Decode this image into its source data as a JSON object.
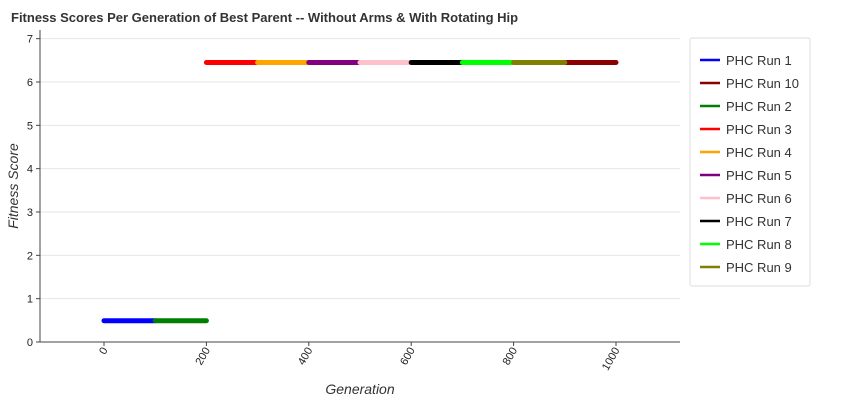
{
  "chart_data": {
    "type": "line",
    "title": "Fitness Scores Per Generation of Best Parent -- Without Arms & With Rotating Hip",
    "xlabel": "Generation",
    "ylabel": "Fitness Score",
    "xlim": [
      -125,
      1125
    ],
    "ylim": [
      0,
      7.2
    ],
    "x_ticks": [
      0,
      200,
      400,
      600,
      800,
      1000
    ],
    "x_tick_labels": [
      "0",
      "200",
      "400",
      "600",
      "800",
      "1000"
    ],
    "y_ticks": [
      0,
      1,
      2,
      3,
      4,
      5,
      6,
      7
    ],
    "y_tick_labels": [
      "0",
      "1",
      "2",
      "3",
      "4",
      "5",
      "6",
      "7"
    ],
    "grid": "horizontal",
    "legend_position": "right",
    "series": [
      {
        "name": "PHC Run 1",
        "color": "#0000ff",
        "x": [
          0,
          100
        ],
        "y": [
          0.49,
          0.49
        ]
      },
      {
        "name": "PHC Run 10",
        "color": "#8b0000",
        "x": [
          900,
          1000
        ],
        "y": [
          6.45,
          6.45
        ]
      },
      {
        "name": "PHC Run 2",
        "color": "#008000",
        "x": [
          100,
          200
        ],
        "y": [
          0.49,
          0.49
        ]
      },
      {
        "name": "PHC Run 3",
        "color": "#ff0000",
        "x": [
          200,
          300
        ],
        "y": [
          6.45,
          6.45
        ]
      },
      {
        "name": "PHC Run 4",
        "color": "#ffa500",
        "x": [
          300,
          400
        ],
        "y": [
          6.45,
          6.45
        ]
      },
      {
        "name": "PHC Run 5",
        "color": "#800080",
        "x": [
          400,
          500
        ],
        "y": [
          6.45,
          6.45
        ]
      },
      {
        "name": "PHC Run 6",
        "color": "#ffc0cb",
        "x": [
          500,
          600
        ],
        "y": [
          6.45,
          6.45
        ]
      },
      {
        "name": "PHC Run 7",
        "color": "#000000",
        "x": [
          600,
          700
        ],
        "y": [
          6.45,
          6.45
        ]
      },
      {
        "name": "PHC Run 8",
        "color": "#00ff00",
        "x": [
          700,
          800
        ],
        "y": [
          6.45,
          6.45
        ]
      },
      {
        "name": "PHC Run 9",
        "color": "#808000",
        "x": [
          800,
          900
        ],
        "y": [
          6.45,
          6.45
        ]
      }
    ]
  }
}
